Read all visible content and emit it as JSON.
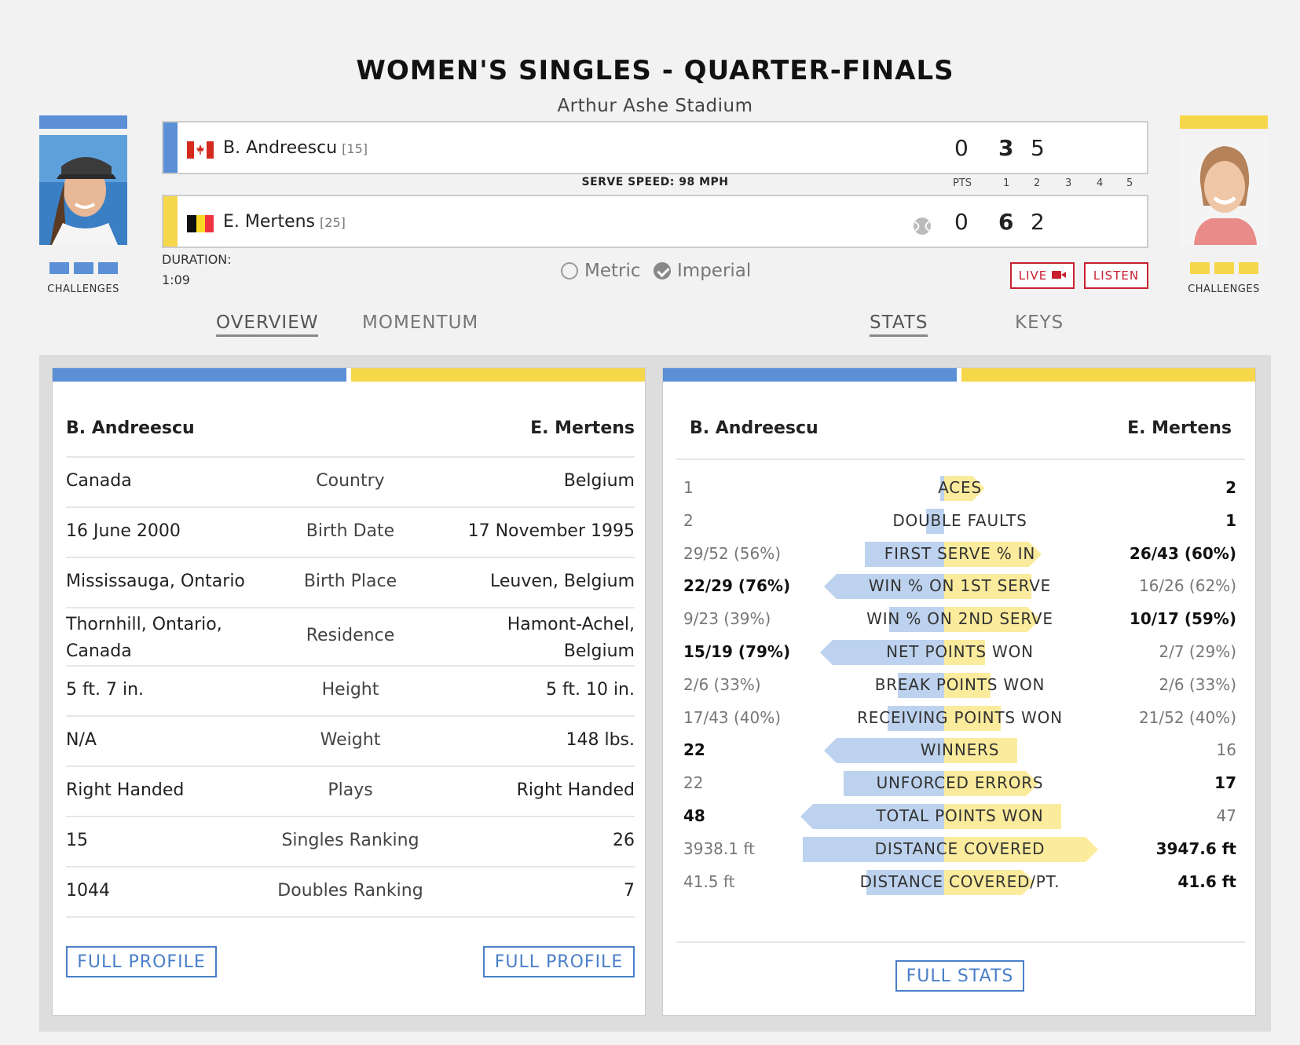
{
  "header": {
    "title": "WOMEN'S SINGLES - QUARTER-FINALS",
    "venue": "Arthur Ashe Stadium"
  },
  "colors": {
    "player1": "#5b8fd6",
    "player2": "#f6d74a",
    "accent_red": "#c8202f",
    "link_blue": "#4a7fc9"
  },
  "player1": {
    "name": "B. Andreescu",
    "seed": "[15]",
    "flag": "canada-flag",
    "points": "0",
    "sets": [
      "3",
      "5"
    ],
    "challenges_label": "CHALLENGES",
    "challenges_left": 3
  },
  "player2": {
    "name": "E. Mertens",
    "seed": "[25]",
    "flag": "belgium-flag",
    "points": "0",
    "sets": [
      "6",
      "2"
    ],
    "challenges_label": "CHALLENGES",
    "challenges_left": 3,
    "serving_icon": "tennis-ball-icon"
  },
  "scoreboard": {
    "serve_speed": "SERVE SPEED: 98 MPH",
    "col_labels": [
      "PTS",
      "1",
      "2",
      "3",
      "4",
      "5"
    ]
  },
  "duration": {
    "label": "DURATION:",
    "value": "1:09"
  },
  "units": {
    "metric": "Metric",
    "imperial": "Imperial",
    "selected": "Imperial"
  },
  "buttons": {
    "live": "LIVE",
    "listen": "LISTEN",
    "full_profile": "FULL PROFILE",
    "full_stats": "FULL STATS"
  },
  "tabs": {
    "overview": "OVERVIEW",
    "momentum": "MOMENTUM",
    "stats": "STATS",
    "keys": "KEYS"
  },
  "overview": {
    "head_left": "B. Andreescu",
    "head_right": "E. Mertens",
    "rows": [
      {
        "label": "Country",
        "left": "Canada",
        "right": "Belgium"
      },
      {
        "label": "Birth Date",
        "left": "16 June 2000",
        "right": "17 November 1995"
      },
      {
        "label": "Birth Place",
        "left": "Mississauga, Ontario",
        "right": "Leuven, Belgium"
      },
      {
        "label": "Residence",
        "left": "Thornhill, Ontario,\nCanada",
        "right": "Hamont-Achel,\nBelgium"
      },
      {
        "label": "Height",
        "left": "5 ft. 7 in.",
        "right": "5 ft. 10 in."
      },
      {
        "label": "Weight",
        "left": "N/A",
        "right": "148 lbs."
      },
      {
        "label": "Plays",
        "left": "Right Handed",
        "right": "Right Handed"
      },
      {
        "label": "Singles Ranking",
        "left": "15",
        "right": "26"
      },
      {
        "label": "Doubles Ranking",
        "left": "1044",
        "right": "7"
      }
    ]
  },
  "stats": {
    "head_left": "B. Andreescu",
    "head_right": "E. Mertens",
    "rows": [
      {
        "label": "ACES",
        "left": "1",
        "right": "2",
        "lead": "right",
        "left_share": 0.03,
        "right_share": 0.2
      },
      {
        "label": "DOUBLE FAULTS",
        "left": "2",
        "right": "1",
        "lead": "right",
        "left_share": 0.13,
        "right_share": 0.0
      },
      {
        "label": "FIRST SERVE % IN",
        "left": "29/52 (56%)",
        "right": "26/43 (60%)",
        "lead": "right",
        "left_share": 0.56,
        "right_share": 0.6
      },
      {
        "label": "WIN % ON 1ST SERVE",
        "left": "22/29 (76%)",
        "right": "16/26 (62%)",
        "lead": "left",
        "left_share": 0.76,
        "right_share": 0.62
      },
      {
        "label": "WIN % ON 2ND SERVE",
        "left": "9/23 (39%)",
        "right": "10/17 (59%)",
        "lead": "right",
        "left_share": 0.39,
        "right_share": 0.59
      },
      {
        "label": "NET POINTS WON",
        "left": "15/19 (79%)",
        "right": "2/7 (29%)",
        "lead": "left",
        "left_share": 0.79,
        "right_share": 0.29
      },
      {
        "label": "BREAK POINTS WON",
        "left": "2/6 (33%)",
        "right": "2/6 (33%)",
        "lead": "none",
        "left_share": 0.33,
        "right_share": 0.33
      },
      {
        "label": "RECEIVING POINTS WON",
        "left": "17/43 (40%)",
        "right": "21/52 (40%)",
        "lead": "none",
        "left_share": 0.4,
        "right_share": 0.4
      },
      {
        "label": "WINNERS",
        "left": "22",
        "right": "16",
        "lead": "left",
        "left_share": 0.76,
        "right_share": 0.52
      },
      {
        "label": "UNFORCED ERRORS",
        "left": "22",
        "right": "17",
        "lead": "right",
        "left_share": 0.71,
        "right_share": 0.58
      },
      {
        "label": "TOTAL POINTS WON",
        "left": "48",
        "right": "47",
        "lead": "left",
        "left_share": 0.93,
        "right_share": 0.83
      },
      {
        "label": "DISTANCE COVERED",
        "left": "3938.1 ft",
        "right": "3947.6 ft",
        "lead": "right",
        "left_share": 1.0,
        "right_share": 1.0
      },
      {
        "label": "DISTANCE COVERED/PT.",
        "left": "41.5 ft",
        "right": "41.6 ft",
        "lead": "right",
        "left_share": 0.55,
        "right_share": 0.55
      }
    ]
  }
}
